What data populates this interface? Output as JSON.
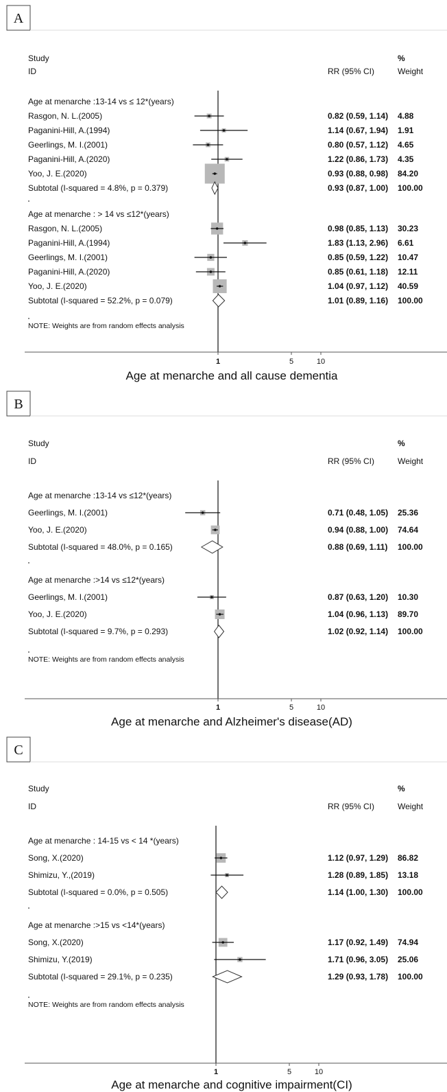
{
  "chart_data": {
    "type": "forest",
    "x_ticks": [
      "1",
      "5",
      "10"
    ],
    "x_tick_values": [
      1,
      5,
      10
    ],
    "null_line_value": 1,
    "panels": [
      {
        "letter": "A",
        "caption": "Age at menarche and all cause dementia",
        "header_study": "Study",
        "header_id": "ID",
        "header_pct": "%",
        "header_rr": "RR (95% CI)",
        "header_weight": "Weight",
        "note": "NOTE: Weights are from random effects analysis",
        "groups": [
          {
            "label": "Age at menarche :13-14 vs ≤ 12*(years)",
            "studies": [
              {
                "name": "Rasgon, N. L.(2005)",
                "rr": 0.82,
                "lo": 0.59,
                "hi": 1.14,
                "ci_text": "0.82 (0.59, 1.14)",
                "weight": "4.88"
              },
              {
                "name": "Paganini-Hill, A.(1994)",
                "rr": 1.14,
                "lo": 0.67,
                "hi": 1.94,
                "ci_text": "1.14 (0.67, 1.94)",
                "weight": "1.91"
              },
              {
                "name": "Geerlings, M. I.(2001)",
                "rr": 0.8,
                "lo": 0.57,
                "hi": 1.12,
                "ci_text": "0.80 (0.57, 1.12)",
                "weight": "4.65"
              },
              {
                "name": "Paganini-Hill, A.(2020)",
                "rr": 1.22,
                "lo": 0.86,
                "hi": 1.73,
                "ci_text": "1.22 (0.86, 1.73)",
                "weight": "4.35"
              },
              {
                "name": "Yoo, J. E.(2020)",
                "rr": 0.93,
                "lo": 0.88,
                "hi": 0.98,
                "ci_text": "0.93 (0.88, 0.98)",
                "weight": "84.20"
              }
            ],
            "subtotal": {
              "label": "Subtotal  (I-squared = 4.8%, p = 0.379)",
              "rr": 0.93,
              "lo": 0.87,
              "hi": 1.0,
              "ci_text": "0.93 (0.87, 1.00)",
              "weight": "100.00"
            }
          },
          {
            "label": "Age at menarche : > 14 vs ≤12*(years)",
            "studies": [
              {
                "name": "Rasgon, N. L.(2005)",
                "rr": 0.98,
                "lo": 0.85,
                "hi": 1.13,
                "ci_text": "0.98 (0.85, 1.13)",
                "weight": "30.23"
              },
              {
                "name": "Paganini-Hill, A.(1994)",
                "rr": 1.83,
                "lo": 1.13,
                "hi": 2.96,
                "ci_text": "1.83 (1.13, 2.96)",
                "weight": "6.61"
              },
              {
                "name": "Geerlings, M. I.(2001)",
                "rr": 0.85,
                "lo": 0.59,
                "hi": 1.22,
                "ci_text": "0.85 (0.59, 1.22)",
                "weight": "10.47"
              },
              {
                "name": "Paganini-Hill, A.(2020)",
                "rr": 0.85,
                "lo": 0.61,
                "hi": 1.18,
                "ci_text": "0.85 (0.61, 1.18)",
                "weight": "12.11"
              },
              {
                "name": "Yoo, J. E.(2020)",
                "rr": 1.04,
                "lo": 0.97,
                "hi": 1.12,
                "ci_text": "1.04 (0.97, 1.12)",
                "weight": "40.59"
              }
            ],
            "subtotal": {
              "label": "Subtotal  (I-squared = 52.2%, p = 0.079)",
              "rr": 1.01,
              "lo": 0.89,
              "hi": 1.16,
              "ci_text": "1.01 (0.89, 1.16)",
              "weight": "100.00"
            }
          }
        ]
      },
      {
        "letter": "B",
        "caption": "Age at menarche and Alzheimer's disease(AD)",
        "header_study": "Study",
        "header_id": "ID",
        "header_pct": "%",
        "header_rr": "RR (95% CI)",
        "header_weight": "Weight",
        "note": "NOTE: Weights are from random effects analysis",
        "groups": [
          {
            "label": "Age at menarche :13-14 vs ≤12*(years)",
            "studies": [
              {
                "name": "Geerlings, M. I.(2001)",
                "rr": 0.71,
                "lo": 0.48,
                "hi": 1.05,
                "ci_text": "0.71 (0.48, 1.05)",
                "weight": "25.36"
              },
              {
                "name": "Yoo, J. E.(2020)",
                "rr": 0.94,
                "lo": 0.88,
                "hi": 1.0,
                "ci_text": "0.94 (0.88, 1.00)",
                "weight": "74.64"
              }
            ],
            "subtotal": {
              "label": "Subtotal  (I-squared = 48.0%, p = 0.165)",
              "rr": 0.88,
              "lo": 0.69,
              "hi": 1.11,
              "ci_text": "0.88 (0.69, 1.11)",
              "weight": "100.00"
            }
          },
          {
            "label": "Age at menarche :>14 vs ≤12*(years)",
            "studies": [
              {
                "name": "Geerlings, M. I.(2001)",
                "rr": 0.87,
                "lo": 0.63,
                "hi": 1.2,
                "ci_text": "0.87 (0.63, 1.20)",
                "weight": "10.30"
              },
              {
                "name": "Yoo, J. E.(2020)",
                "rr": 1.04,
                "lo": 0.96,
                "hi": 1.13,
                "ci_text": "1.04 (0.96, 1.13)",
                "weight": "89.70"
              }
            ],
            "subtotal": {
              "label": "Subtotal  (I-squared = 9.7%, p = 0.293)",
              "rr": 1.02,
              "lo": 0.92,
              "hi": 1.14,
              "ci_text": "1.02 (0.92, 1.14)",
              "weight": "100.00"
            }
          }
        ]
      },
      {
        "letter": "C",
        "caption": "Age at menarche and cognitive impairment(CI)",
        "header_study": "Study",
        "header_id": "ID",
        "header_pct": "%",
        "header_rr": "RR (95% CI)",
        "header_weight": "Weight",
        "note": "NOTE: Weights are from random effects analysis",
        "groups": [
          {
            "label": "Age at menarche : 14-15 vs < 14 *(years)",
            "studies": [
              {
                "name": "Song, X.(2020)",
                "rr": 1.12,
                "lo": 0.97,
                "hi": 1.29,
                "ci_text": "1.12 (0.97, 1.29)",
                "weight": "86.82"
              },
              {
                "name": "Shimizu, Y.,(2019)",
                "rr": 1.28,
                "lo": 0.89,
                "hi": 1.85,
                "ci_text": "1.28 (0.89, 1.85)",
                "weight": "13.18"
              }
            ],
            "subtotal": {
              "label": "Subtotal  (I-squared = 0.0%, p = 0.505)",
              "rr": 1.14,
              "lo": 1.0,
              "hi": 1.3,
              "ci_text": "1.14 (1.00, 1.30)",
              "weight": "100.00"
            }
          },
          {
            "label": "Age at menarche :>15 vs <14*(years)",
            "studies": [
              {
                "name": "Song, X.(2020)",
                "rr": 1.17,
                "lo": 0.92,
                "hi": 1.49,
                "ci_text": "1.17 (0.92, 1.49)",
                "weight": "74.94"
              },
              {
                "name": "Shimizu, Y.(2019)",
                "rr": 1.71,
                "lo": 0.96,
                "hi": 3.05,
                "ci_text": "1.71 (0.96, 3.05)",
                "weight": "25.06"
              }
            ],
            "subtotal": {
              "label": "Subtotal  (I-squared = 29.1%, p = 0.235)",
              "rr": 1.29,
              "lo": 0.93,
              "hi": 1.78,
              "ci_text": "1.29 (0.93, 1.78)",
              "weight": "100.00"
            }
          }
        ]
      }
    ]
  }
}
